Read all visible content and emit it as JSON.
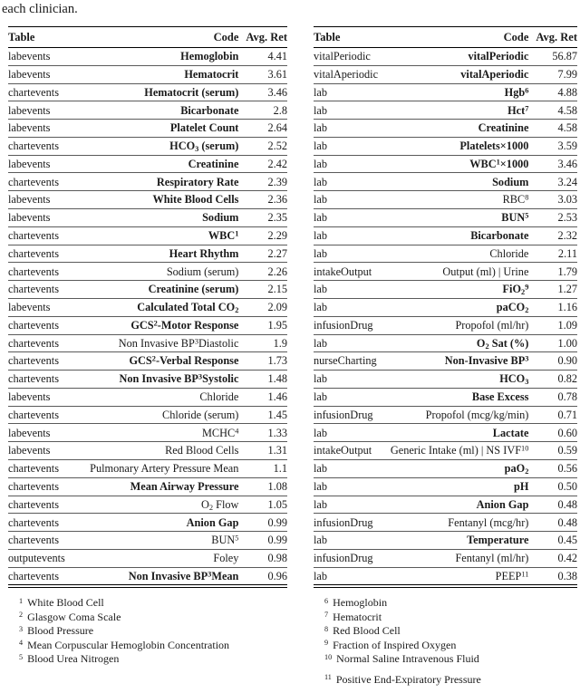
{
  "intro_text": "each clinician.",
  "tables": [
    {
      "id": "left",
      "headers": {
        "table": "Table",
        "code": "Code",
        "avg_ret": "Avg. Ret"
      },
      "rows": [
        {
          "table": "labevents",
          "code": "Hemoglobin",
          "bold": true,
          "avg_ret": "4.41"
        },
        {
          "table": "labevents",
          "code": "Hematocrit",
          "bold": true,
          "avg_ret": "3.61"
        },
        {
          "table": "chartevents",
          "code": "Hematocrit (serum)",
          "bold": true,
          "avg_ret": "3.46"
        },
        {
          "table": "labevents",
          "code": "Bicarbonate",
          "bold": true,
          "avg_ret": "2.8"
        },
        {
          "table": "labevents",
          "code": "Platelet Count",
          "bold": true,
          "avg_ret": "2.64"
        },
        {
          "table": "chartevents",
          "code": "HCO_3 (serum)",
          "bold": true,
          "avg_ret": "2.52"
        },
        {
          "table": "labevents",
          "code": "Creatinine",
          "bold": true,
          "avg_ret": "2.42"
        },
        {
          "table": "chartevents",
          "code": "Respiratory Rate",
          "bold": true,
          "avg_ret": "2.39"
        },
        {
          "table": "labevents",
          "code": "White Blood Cells",
          "bold": true,
          "avg_ret": "2.36"
        },
        {
          "table": "labevents",
          "code": "Sodium",
          "bold": true,
          "avg_ret": "2.35"
        },
        {
          "table": "chartevents",
          "code": "WBC^1",
          "bold": true,
          "avg_ret": "2.29"
        },
        {
          "table": "chartevents",
          "code": "Heart Rhythm",
          "bold": true,
          "avg_ret": "2.27"
        },
        {
          "table": "chartevents",
          "code": "Sodium (serum)",
          "bold": false,
          "avg_ret": "2.26"
        },
        {
          "table": "chartevents",
          "code": "Creatinine (serum)",
          "bold": true,
          "avg_ret": "2.15"
        },
        {
          "table": "labevents",
          "code": "Calculated Total CO_2",
          "bold": true,
          "avg_ret": "2.09"
        },
        {
          "table": "chartevents",
          "code": "GCS^2-Motor Response",
          "bold": true,
          "avg_ret": "1.95"
        },
        {
          "table": "chartevents",
          "code": "Non Invasive BP^3Diastolic",
          "bold": false,
          "avg_ret": "1.9"
        },
        {
          "table": "chartevents",
          "code": "GCS^2-Verbal Response",
          "bold": true,
          "avg_ret": "1.73"
        },
        {
          "table": "chartevents",
          "code": "Non Invasive BP^3Systolic",
          "bold": true,
          "avg_ret": "1.48"
        },
        {
          "table": "labevents",
          "code": "Chloride",
          "bold": false,
          "avg_ret": "1.46"
        },
        {
          "table": "chartevents",
          "code": "Chloride (serum)",
          "bold": false,
          "avg_ret": "1.45"
        },
        {
          "table": "labevents",
          "code": "MCHC^4",
          "bold": false,
          "avg_ret": "1.33"
        },
        {
          "table": "labevents",
          "code": "Red Blood Cells",
          "bold": false,
          "avg_ret": "1.31"
        },
        {
          "table": "chartevents",
          "code": "Pulmonary Artery Pressure Mean",
          "bold": false,
          "avg_ret": "1.1"
        },
        {
          "table": "chartevents",
          "code": "Mean Airway Pressure",
          "bold": true,
          "avg_ret": "1.08"
        },
        {
          "table": "chartevents",
          "code": "O_2 Flow",
          "bold": false,
          "avg_ret": "1.05"
        },
        {
          "table": "chartevents",
          "code": "Anion Gap",
          "bold": true,
          "avg_ret": "0.99"
        },
        {
          "table": "chartevents",
          "code": "BUN^5",
          "bold": false,
          "avg_ret": "0.99"
        },
        {
          "table": "outputevents",
          "code": "Foley",
          "bold": false,
          "avg_ret": "0.98"
        },
        {
          "table": "chartevents",
          "code": "Non Invasive BP^3Mean",
          "bold": true,
          "avg_ret": "0.96"
        }
      ],
      "footnotes": [
        {
          "marker": "1",
          "text": "White Blood Cell"
        },
        {
          "marker": "2",
          "text": "Glasgow Coma Scale"
        },
        {
          "marker": "3",
          "text": "Blood Pressure"
        },
        {
          "marker": "4",
          "text": "Mean Corpuscular Hemoglobin Concentration"
        },
        {
          "marker": "5",
          "text": "Blood Urea Nitrogen"
        }
      ]
    },
    {
      "id": "right",
      "headers": {
        "table": "Table",
        "code": "Code",
        "avg_ret": "Avg. Ret"
      },
      "rows": [
        {
          "table": "vitalPeriodic",
          "code": "vitalPeriodic",
          "bold": true,
          "avg_ret": "56.87"
        },
        {
          "table": "vitalAperiodic",
          "code": "vitalAperiodic",
          "bold": true,
          "avg_ret": "7.99"
        },
        {
          "table": "lab",
          "code": "Hgb^6",
          "bold": true,
          "avg_ret": "4.88"
        },
        {
          "table": "lab",
          "code": "Hct^7",
          "bold": true,
          "avg_ret": "4.58"
        },
        {
          "table": "lab",
          "code": "Creatinine",
          "bold": true,
          "avg_ret": "4.58"
        },
        {
          "table": "lab",
          "code": "Platelets×1000",
          "bold": true,
          "avg_ret": "3.59"
        },
        {
          "table": "lab",
          "code": "WBC^1×1000",
          "bold": true,
          "avg_ret": "3.46"
        },
        {
          "table": "lab",
          "code": "Sodium",
          "bold": true,
          "avg_ret": "3.24"
        },
        {
          "table": "lab",
          "code": "RBC^8",
          "bold": false,
          "avg_ret": "3.03"
        },
        {
          "table": "lab",
          "code": "BUN^5",
          "bold": true,
          "avg_ret": "2.53"
        },
        {
          "table": "lab",
          "code": "Bicarbonate",
          "bold": true,
          "avg_ret": "2.32"
        },
        {
          "table": "lab",
          "code": "Chloride",
          "bold": false,
          "avg_ret": "2.11"
        },
        {
          "table": "intakeOutput",
          "code": "Output (ml) | Urine",
          "bold": false,
          "avg_ret": "1.79"
        },
        {
          "table": "lab",
          "code": "FiO_2^9",
          "bold": true,
          "avg_ret": "1.27"
        },
        {
          "table": "lab",
          "code": "paCO_2",
          "bold": true,
          "avg_ret": "1.16"
        },
        {
          "table": "infusionDrug",
          "code": "Propofol (ml/hr)",
          "bold": false,
          "avg_ret": "1.09"
        },
        {
          "table": "lab",
          "code": "O_2 Sat (%)",
          "bold": true,
          "avg_ret": "1.00"
        },
        {
          "table": "nurseCharting",
          "code": "Non-Invasive BP^3",
          "bold": true,
          "avg_ret": "0.90"
        },
        {
          "table": "lab",
          "code": "HCO_3",
          "bold": true,
          "avg_ret": "0.82"
        },
        {
          "table": "lab",
          "code": "Base Excess",
          "bold": true,
          "avg_ret": "0.78"
        },
        {
          "table": "infusionDrug",
          "code": "Propofol (mcg/kg/min)",
          "bold": false,
          "avg_ret": "0.71"
        },
        {
          "table": "lab",
          "code": "Lactate",
          "bold": true,
          "avg_ret": "0.60"
        },
        {
          "table": "intakeOutput",
          "code": "Generic Intake (ml) | NS IVF^10",
          "bold": false,
          "avg_ret": "0.59"
        },
        {
          "table": "lab",
          "code": "paO_2",
          "bold": true,
          "avg_ret": "0.56"
        },
        {
          "table": "lab",
          "code": "pH",
          "bold": true,
          "avg_ret": "0.50"
        },
        {
          "table": "lab",
          "code": "Anion Gap",
          "bold": true,
          "avg_ret": "0.48"
        },
        {
          "table": "infusionDrug",
          "code": "Fentanyl (mcg/hr)",
          "bold": false,
          "avg_ret": "0.48"
        },
        {
          "table": "lab",
          "code": "Temperature",
          "bold": true,
          "avg_ret": "0.45"
        },
        {
          "table": "infusionDrug",
          "code": "Fentanyl (ml/hr)",
          "bold": false,
          "avg_ret": "0.42"
        },
        {
          "table": "lab",
          "code": "PEEP^11",
          "bold": false,
          "avg_ret": "0.38"
        }
      ],
      "footnotes": [
        {
          "marker": "6",
          "text": "Hemoglobin"
        },
        {
          "marker": "7",
          "text": "Hematocrit"
        },
        {
          "marker": "8",
          "text": "Red Blood Cell"
        },
        {
          "marker": "9",
          "text": "Fraction of Inspired Oxygen"
        },
        {
          "marker": "10",
          "text": "Normal Saline Intravenous Fluid"
        },
        {
          "marker": "11",
          "text": "Positive End-Expiratory Pressure",
          "gap_before": true
        }
      ]
    }
  ]
}
